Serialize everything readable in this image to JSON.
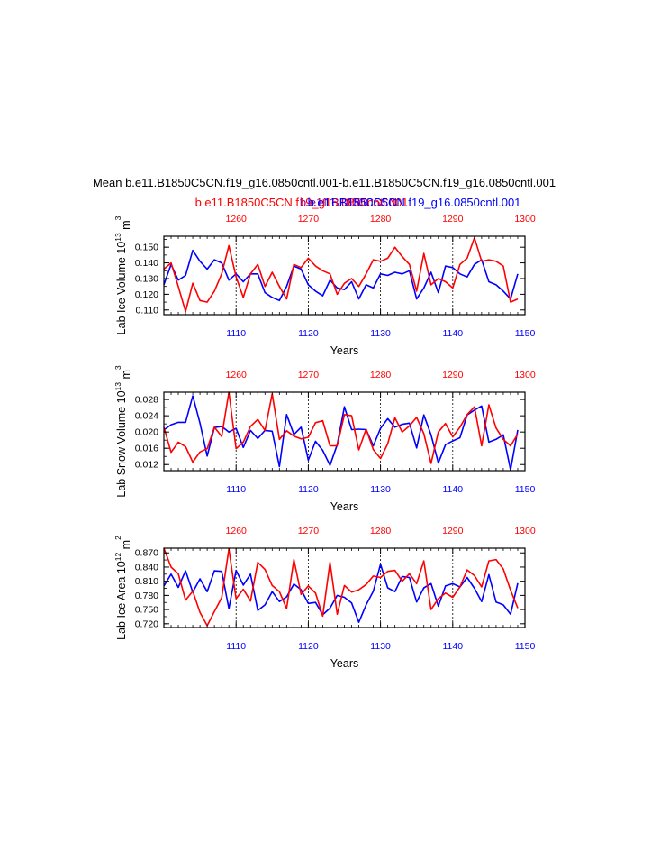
{
  "title": "Mean b.e11.B1850C5CN.f19_g16.0850cntl.001-b.e11.B1850C5CN.f19_g16.0850cntl.001",
  "subtitle_red": "b.e11.B1850C5CN.f19_g16.0850cntl.001",
  "subtitle_overlap": "b.e11.B1850C5CN",
  "subtitle_blue": "b.e11.B1850C5CN.f19_g16.0850cntl.001",
  "colors": {
    "red": "#ff0000",
    "blue": "#0000ff",
    "axis": "#000000"
  },
  "chart_data": [
    {
      "type": "line",
      "ylabel": "Lab Ice Volume 10",
      "ylabel_exp": "13",
      "ylabel_unit": " m",
      "ylabel_unit_exp": "3",
      "xlabel": "Years",
      "ylim": [
        0.107,
        0.157
      ],
      "yticks": [
        0.11,
        0.12,
        0.13,
        0.14,
        0.15
      ],
      "ytick_labels": [
        "0.110",
        "0.120",
        "0.130",
        "0.140",
        "0.150"
      ],
      "x_bottom": {
        "range": [
          1100,
          1150
        ],
        "ticks": [
          1110,
          1120,
          1130,
          1140,
          1150
        ],
        "labels": [
          "1110",
          "1120",
          "1130",
          "1140",
          "1150"
        ]
      },
      "x_top": {
        "range": [
          1250,
          1300
        ],
        "ticks": [
          1260,
          1270,
          1280,
          1290,
          1300
        ],
        "labels": [
          "1260",
          "1270",
          "1280",
          "1290",
          "1300"
        ]
      },
      "vlines": [
        1110,
        1120,
        1130,
        1140
      ],
      "series": [
        {
          "name": "blue",
          "axis": "bottom",
          "x_start": 1100,
          "values": [
            0.126,
            0.139,
            0.129,
            0.132,
            0.148,
            0.141,
            0.136,
            0.142,
            0.14,
            0.129,
            0.133,
            0.128,
            0.133,
            0.133,
            0.121,
            0.118,
            0.116,
            0.125,
            0.138,
            0.136,
            0.126,
            0.122,
            0.119,
            0.129,
            0.124,
            0.123,
            0.128,
            0.117,
            0.126,
            0.124,
            0.133,
            0.132,
            0.134,
            0.133,
            0.135,
            0.117,
            0.124,
            0.134,
            0.121,
            0.138,
            0.137,
            0.133,
            0.131,
            0.139,
            0.142,
            0.128,
            0.126,
            0.122,
            0.117,
            0.133
          ]
        },
        {
          "name": "red",
          "axis": "top",
          "x_start": 1250,
          "values": [
            0.136,
            0.14,
            0.125,
            0.109,
            0.127,
            0.116,
            0.115,
            0.122,
            0.133,
            0.151,
            0.131,
            0.118,
            0.133,
            0.139,
            0.125,
            0.134,
            0.125,
            0.117,
            0.139,
            0.137,
            0.143,
            0.138,
            0.135,
            0.133,
            0.12,
            0.127,
            0.13,
            0.125,
            0.133,
            0.142,
            0.141,
            0.143,
            0.15,
            0.144,
            0.139,
            0.122,
            0.146,
            0.126,
            0.13,
            0.128,
            0.124,
            0.139,
            0.143,
            0.156,
            0.141,
            0.142,
            0.141,
            0.138,
            0.115,
            0.117
          ]
        }
      ]
    },
    {
      "type": "line",
      "ylabel": "Lab Snow Volume 10",
      "ylabel_exp": "13",
      "ylabel_unit": " m",
      "ylabel_unit_exp": "3",
      "xlabel": "Years",
      "ylim": [
        0.0105,
        0.0298
      ],
      "yticks": [
        0.012,
        0.016,
        0.02,
        0.024,
        0.028
      ],
      "ytick_labels": [
        "0.012",
        "0.016",
        "0.020",
        "0.024",
        "0.028"
      ],
      "x_bottom": {
        "range": [
          1100,
          1150
        ],
        "ticks": [
          1110,
          1120,
          1130,
          1140,
          1150
        ],
        "labels": [
          "1110",
          "1120",
          "1130",
          "1140",
          "1150"
        ]
      },
      "x_top": {
        "range": [
          1250,
          1300
        ],
        "ticks": [
          1260,
          1270,
          1280,
          1290,
          1300
        ],
        "labels": [
          "1260",
          "1270",
          "1280",
          "1290",
          "1300"
        ]
      },
      "vlines": [
        1110,
        1120,
        1130,
        1140
      ],
      "series": [
        {
          "name": "blue",
          "axis": "bottom",
          "x_start": 1100,
          "values": [
            0.0205,
            0.0218,
            0.0224,
            0.0224,
            0.0289,
            0.0222,
            0.0141,
            0.0211,
            0.0214,
            0.02,
            0.0209,
            0.0162,
            0.0204,
            0.0184,
            0.0204,
            0.0202,
            0.0115,
            0.0243,
            0.0194,
            0.0212,
            0.0131,
            0.0177,
            0.0155,
            0.0118,
            0.0169,
            0.0262,
            0.0206,
            0.0207,
            0.0206,
            0.0166,
            0.0209,
            0.0233,
            0.0212,
            0.0219,
            0.0222,
            0.0161,
            0.0242,
            0.0193,
            0.0124,
            0.0169,
            0.0178,
            0.0186,
            0.0242,
            0.0254,
            0.0264,
            0.0175,
            0.0182,
            0.0193,
            0.0107,
            0.0205
          ]
        },
        {
          "name": "red",
          "axis": "top",
          "x_start": 1250,
          "values": [
            0.0212,
            0.015,
            0.0175,
            0.0164,
            0.0126,
            0.0151,
            0.0159,
            0.0212,
            0.0189,
            0.0298,
            0.0159,
            0.0175,
            0.0214,
            0.0231,
            0.0204,
            0.0294,
            0.0182,
            0.0203,
            0.019,
            0.0183,
            0.0187,
            0.0223,
            0.0228,
            0.0166,
            0.0166,
            0.0243,
            0.024,
            0.0156,
            0.0207,
            0.0157,
            0.0135,
            0.0171,
            0.0235,
            0.02,
            0.0215,
            0.0236,
            0.0196,
            0.0123,
            0.02,
            0.0221,
            0.0188,
            0.0212,
            0.0243,
            0.0262,
            0.0166,
            0.0267,
            0.021,
            0.0182,
            0.0166,
            0.0195
          ]
        }
      ]
    },
    {
      "type": "line",
      "ylabel": "Lab Ice Area 10",
      "ylabel_exp": "12",
      "ylabel_unit": " m",
      "ylabel_unit_exp": "2",
      "xlabel": "Years",
      "ylim": [
        0.712,
        0.88
      ],
      "yticks": [
        0.72,
        0.75,
        0.78,
        0.81,
        0.84,
        0.87
      ],
      "ytick_labels": [
        "0.720",
        "0.750",
        "0.780",
        "0.810",
        "0.840",
        "0.870"
      ],
      "x_bottom": {
        "range": [
          1100,
          1150
        ],
        "ticks": [
          1110,
          1120,
          1130,
          1140,
          1150
        ],
        "labels": [
          "1110",
          "1120",
          "1130",
          "1140",
          "1150"
        ]
      },
      "x_top": {
        "range": [
          1250,
          1300
        ],
        "ticks": [
          1260,
          1270,
          1280,
          1290,
          1300
        ],
        "labels": [
          "1260",
          "1270",
          "1280",
          "1290",
          "1300"
        ]
      },
      "vlines": [
        1110,
        1120,
        1130,
        1140
      ],
      "series": [
        {
          "name": "blue",
          "axis": "bottom",
          "x_start": 1100,
          "values": [
            0.8,
            0.825,
            0.797,
            0.832,
            0.787,
            0.815,
            0.788,
            0.832,
            0.831,
            0.752,
            0.833,
            0.802,
            0.825,
            0.748,
            0.76,
            0.788,
            0.767,
            0.777,
            0.804,
            0.792,
            0.763,
            0.765,
            0.739,
            0.753,
            0.78,
            0.776,
            0.764,
            0.723,
            0.76,
            0.789,
            0.846,
            0.796,
            0.788,
            0.82,
            0.818,
            0.766,
            0.796,
            0.805,
            0.757,
            0.8,
            0.805,
            0.798,
            0.818,
            0.795,
            0.767,
            0.824,
            0.766,
            0.76,
            0.74,
            0.806
          ]
        },
        {
          "name": "red",
          "axis": "top",
          "x_start": 1250,
          "values": [
            0.88,
            0.84,
            0.826,
            0.77,
            0.789,
            0.744,
            0.716,
            0.746,
            0.775,
            0.878,
            0.773,
            0.793,
            0.768,
            0.85,
            0.835,
            0.801,
            0.788,
            0.752,
            0.856,
            0.782,
            0.8,
            0.785,
            0.736,
            0.85,
            0.74,
            0.801,
            0.787,
            0.792,
            0.803,
            0.821,
            0.818,
            0.831,
            0.833,
            0.81,
            0.826,
            0.805,
            0.853,
            0.75,
            0.773,
            0.785,
            0.776,
            0.798,
            0.834,
            0.822,
            0.798,
            0.853,
            0.856,
            0.836,
            0.791,
            0.753
          ]
        }
      ]
    }
  ]
}
